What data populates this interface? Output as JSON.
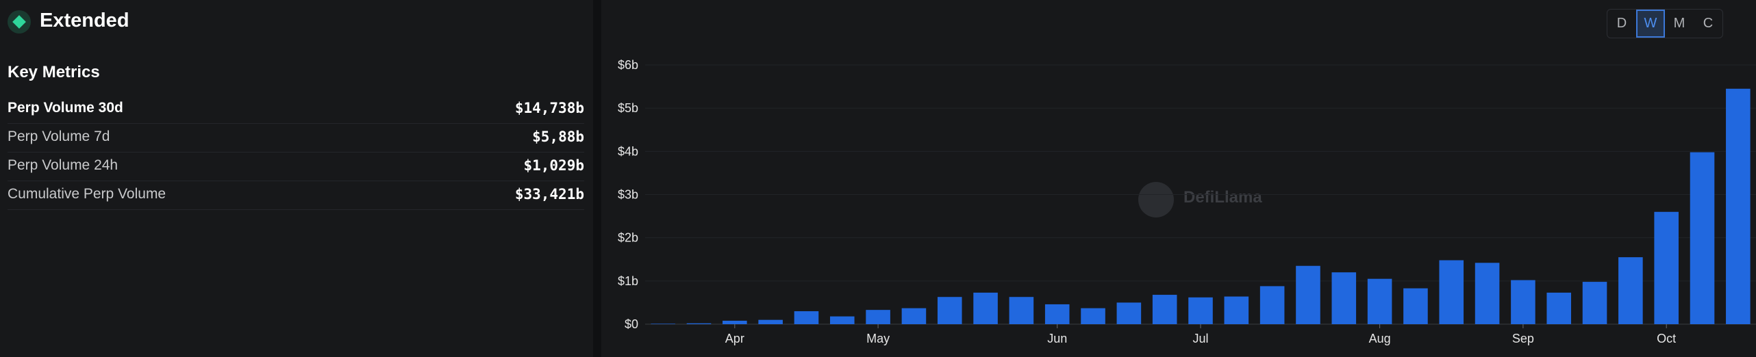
{
  "header": {
    "title": "Extended"
  },
  "metrics": {
    "title": "Key Metrics",
    "rows": [
      [
        "Perp Volume 30d",
        "$14,738b"
      ],
      [
        "Perp Volume 7d",
        "$5,88b"
      ],
      [
        "Perp Volume 24h",
        "$1,029b"
      ],
      [
        "Cumulative Perp Volume",
        "$33,421b"
      ]
    ]
  },
  "toolbar": {
    "buttons": [
      "D",
      "W",
      "M",
      "C"
    ]
  },
  "watermark": "DefiLlama",
  "chart_data": {
    "type": "bar",
    "color": "#2168df",
    "grid": true,
    "categories": [
      null,
      null,
      "Apr",
      null,
      null,
      null,
      "May",
      null,
      null,
      null,
      null,
      "Jun",
      null,
      null,
      null,
      "Jul",
      null,
      null,
      null,
      null,
      "Aug",
      null,
      null,
      null,
      "Sep",
      null,
      null,
      null,
      "Oct",
      null,
      null
    ],
    "values": [
      0.01,
      0.02,
      0.08,
      0.1,
      0.3,
      0.18,
      0.33,
      0.37,
      0.63,
      0.73,
      0.63,
      0.46,
      0.37,
      0.5,
      0.68,
      0.62,
      0.64,
      0.88,
      1.35,
      1.2,
      1.05,
      0.83,
      1.48,
      1.42,
      1.02,
      0.73,
      0.98,
      1.55,
      2.6,
      3.98,
      5.45
    ],
    "ylim": [
      0,
      6
    ],
    "yticks": [
      {
        "value": 0,
        "label": "$0"
      },
      {
        "value": 1,
        "label": "$1b"
      },
      {
        "value": 2,
        "label": "$2b"
      },
      {
        "value": 3,
        "label": "$3b"
      },
      {
        "value": 4,
        "label": "$4b"
      },
      {
        "value": 5,
        "label": "$5b"
      },
      {
        "value": 6,
        "label": "$6b"
      }
    ]
  }
}
